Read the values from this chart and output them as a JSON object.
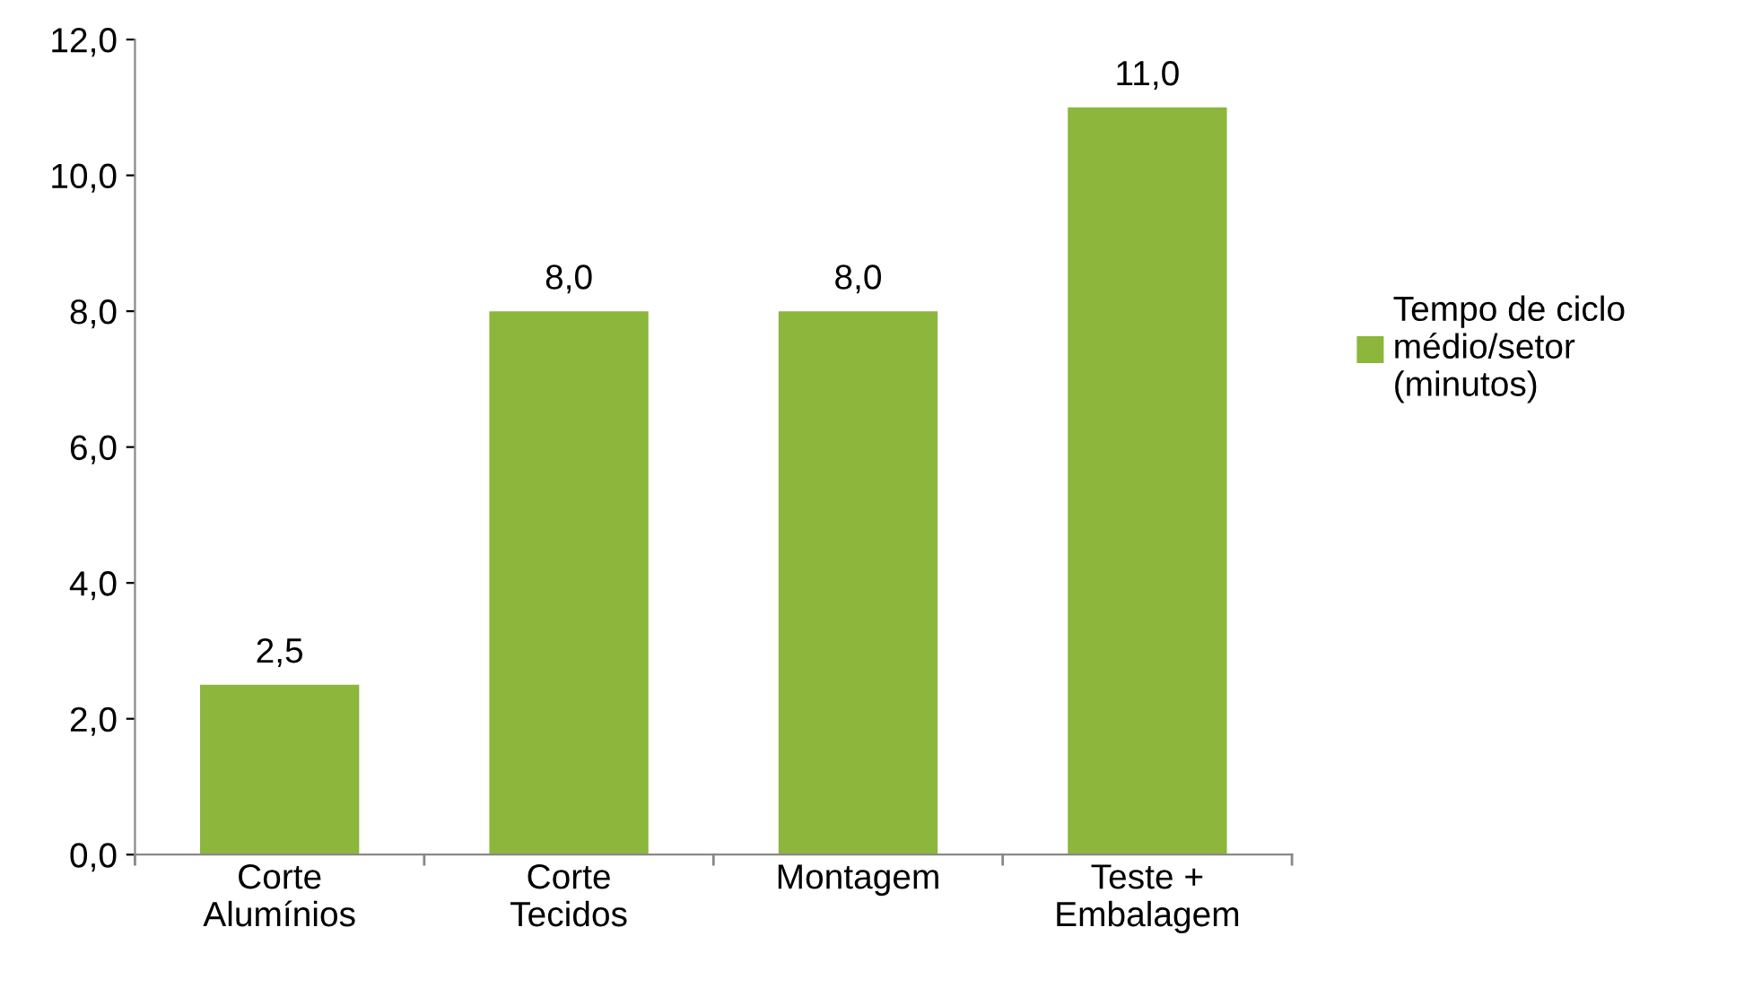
{
  "chart_data": {
    "type": "bar",
    "categories": [
      "Corte\nAlumínios",
      "Corte\nTecidos",
      "Montagem",
      "Teste +\nEmbalagem"
    ],
    "series": [
      {
        "name": "Tempo de ciclo\nmédio/setor\n(minutos)",
        "color": "#8cb63c",
        "values": [
          2.5,
          8.0,
          8.0,
          11.0
        ],
        "value_labels": [
          "2,5",
          "8,0",
          "8,0",
          "11,0"
        ]
      }
    ],
    "ylim": [
      0,
      12
    ],
    "yticks": [
      {
        "value": 0,
        "label": "0,0"
      },
      {
        "value": 2,
        "label": "2,0"
      },
      {
        "value": 4,
        "label": "4,0"
      },
      {
        "value": 6,
        "label": "6,0"
      },
      {
        "value": 8,
        "label": "8,0"
      },
      {
        "value": 10,
        "label": "10,0"
      },
      {
        "value": 12,
        "label": "12,0"
      }
    ],
    "grid": false,
    "legend": "right"
  }
}
